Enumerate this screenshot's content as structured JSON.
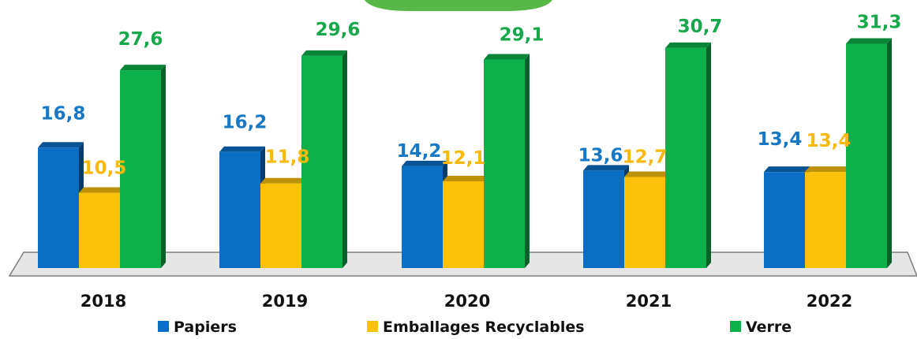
{
  "chart_data": {
    "type": "bar",
    "title": "",
    "xlabel": "",
    "ylabel": "",
    "categories": [
      "2018",
      "2019",
      "2020",
      "2021",
      "2022"
    ],
    "series": [
      {
        "name": "Papiers",
        "color": "#0a6fc4",
        "values": [
          16.8,
          16.2,
          14.2,
          13.6,
          13.4
        ],
        "labels": [
          "16,8",
          "16,2",
          "14,2",
          "13,6",
          "13,4"
        ]
      },
      {
        "name": "Emballages Recyclables",
        "color": "#fcc10a",
        "values": [
          10.5,
          11.8,
          12.1,
          12.7,
          13.4
        ],
        "labels": [
          "10,5",
          "11,8",
          "12,1",
          "12,7",
          "13,4"
        ]
      },
      {
        "name": "Verre",
        "color": "#0db14b",
        "values": [
          27.6,
          29.6,
          29.1,
          30.7,
          31.3
        ],
        "labels": [
          "27,6",
          "29,6",
          "29,1",
          "30,7",
          "31,3"
        ]
      }
    ],
    "label_colors": [
      "#1778c6",
      "#f7b90c",
      "#16a84a"
    ],
    "ylim": [
      0,
      33
    ],
    "grid": false,
    "legend_position": "bottom"
  }
}
